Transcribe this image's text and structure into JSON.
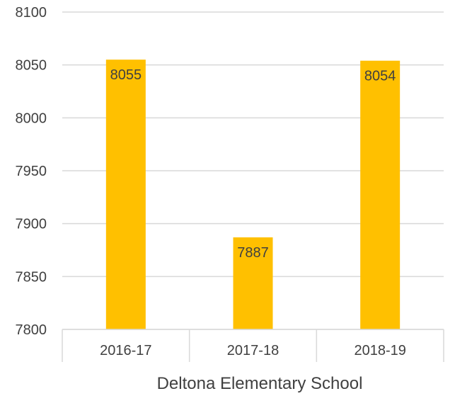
{
  "chart_data": {
    "type": "bar",
    "title": "",
    "xlabel": "Deltona Elementary School",
    "ylabel": "",
    "categories": [
      "2016-17",
      "2017-18",
      "2018-19"
    ],
    "series": [
      {
        "values": [
          8055,
          7887,
          8054
        ]
      }
    ],
    "data_labels": [
      "8055",
      "7887",
      "8054"
    ],
    "ylim": [
      7800,
      8100
    ],
    "yticks": [
      7800,
      7850,
      7900,
      7950,
      8000,
      8050,
      8100
    ],
    "ytick_labels": [
      "7800",
      "7850",
      "7900",
      "7950",
      "8000",
      "8050",
      "8100"
    ],
    "grid": true,
    "legend": "none",
    "colors": {
      "bar": "#FFC000",
      "grid": "#D9D9D9",
      "text": "#404040"
    }
  }
}
